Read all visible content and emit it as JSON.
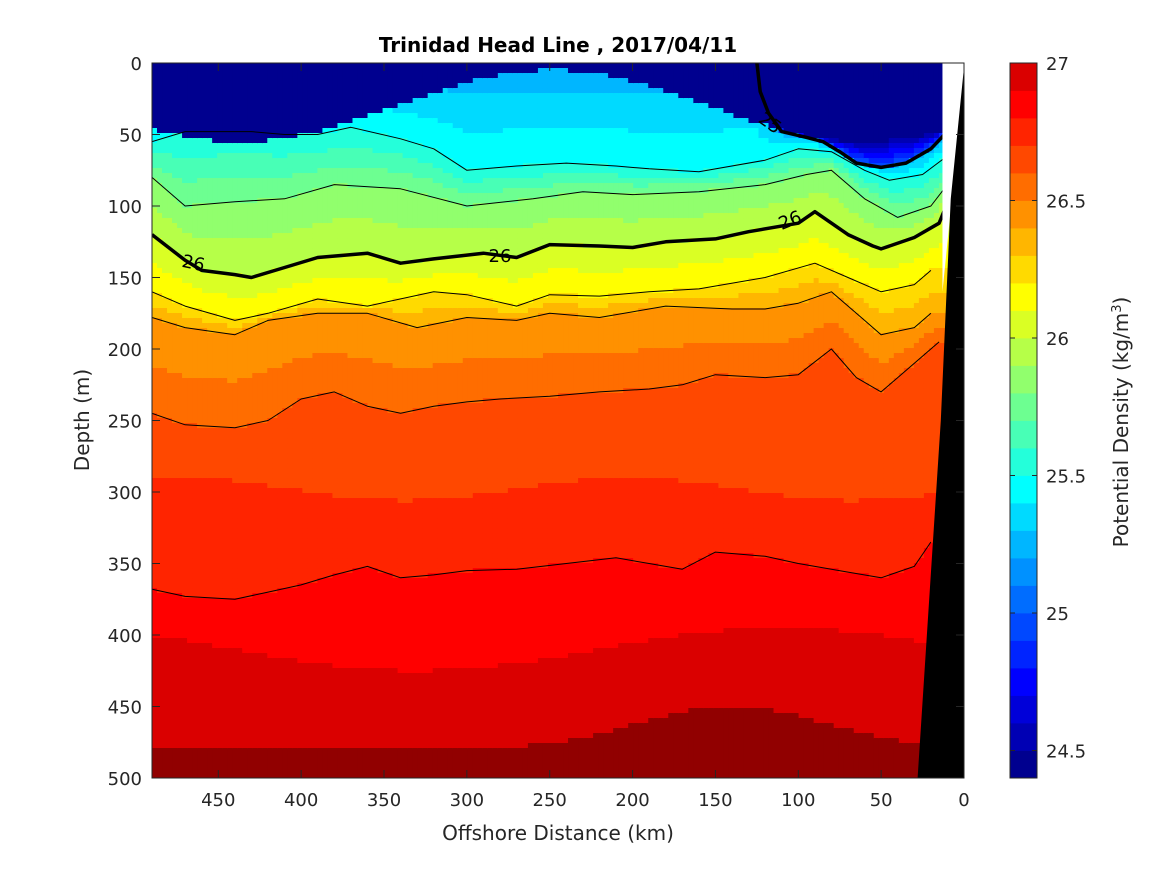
{
  "chart_data": {
    "type": "heatmap",
    "title": "Trinidad Head Line , 2017/04/11",
    "xlabel": "Offshore Distance (km)",
    "ylabel": "Depth (m)",
    "colorbar_label": "Potential Density (kg/m³)",
    "colorbar_label_parts": {
      "base": "Potential Density (kg/m",
      "sup": "3",
      "end": ")"
    },
    "xlim": [
      490,
      0
    ],
    "x_reversed": true,
    "ylim": [
      0,
      500
    ],
    "y_reversed": true,
    "x_ticks": [
      450,
      400,
      350,
      300,
      250,
      200,
      150,
      100,
      50,
      0
    ],
    "x_tick_labels": [
      "450",
      "400",
      "350",
      "300",
      "250",
      "200",
      "150",
      "100",
      "50",
      "0"
    ],
    "y_ticks": [
      0,
      50,
      100,
      150,
      200,
      250,
      300,
      350,
      400,
      450,
      500
    ],
    "y_tick_labels": [
      "0",
      "50",
      "100",
      "150",
      "200",
      "250",
      "300",
      "350",
      "400",
      "450",
      "500"
    ],
    "clim": [
      24.4,
      27
    ],
    "colorbar_ticks": [
      24.5,
      25,
      25.5,
      26,
      26.5,
      27
    ],
    "colorbar_tick_labels": [
      "24.5",
      "25",
      "25.5",
      "26",
      "26.5",
      "27"
    ],
    "colormap": "jet",
    "levels": [
      24.4,
      24.5,
      24.6,
      24.7,
      24.8,
      24.9,
      25.0,
      25.1,
      25.2,
      25.3,
      25.4,
      25.5,
      25.6,
      25.7,
      25.8,
      25.9,
      26.0,
      26.1,
      26.2,
      26.3,
      26.4,
      26.5,
      26.6,
      26.7,
      26.8,
      26.9,
      27.0
    ],
    "colors": [
      "#00008f",
      "#0000b4",
      "#0000d9",
      "#0000ff",
      "#0024ff",
      "#0048ff",
      "#006dff",
      "#0091ff",
      "#00b6ff",
      "#00daff",
      "#00ffff",
      "#24ffda",
      "#48ffb6",
      "#6dff91",
      "#91ff6d",
      "#b6ff48",
      "#daff24",
      "#ffff00",
      "#ffda00",
      "#ffb600",
      "#ff9100",
      "#ff6d00",
      "#ff4800",
      "#ff2400",
      "#ff0000",
      "#da0000",
      "#b60000",
      "#910000"
    ],
    "grid": false,
    "annotations": [
      {
        "text": "26",
        "x": 465,
        "y": 140
      },
      {
        "text": "26",
        "x": 280,
        "y": 135
      },
      {
        "text": "26",
        "x": 105,
        "y": 110
      },
      {
        "text": "25",
        "x": 117,
        "y": 42
      }
    ],
    "isopycnals": [
      {
        "level": 25.0,
        "bold": true,
        "points": [
          [
            125,
            0
          ],
          [
            123,
            20
          ],
          [
            118,
            35
          ],
          [
            110,
            48
          ],
          [
            95,
            52
          ],
          [
            85,
            55
          ],
          [
            75,
            62
          ],
          [
            65,
            70
          ],
          [
            50,
            73
          ],
          [
            35,
            70
          ],
          [
            20,
            60
          ],
          [
            10,
            48
          ]
        ]
      },
      {
        "level": 25.5,
        "bold": false,
        "points": [
          [
            490,
            55
          ],
          [
            470,
            48
          ],
          [
            430,
            48
          ],
          [
            410,
            50
          ],
          [
            390,
            50
          ],
          [
            370,
            45
          ],
          [
            340,
            53
          ],
          [
            320,
            60
          ],
          [
            300,
            75
          ],
          [
            270,
            72
          ],
          [
            240,
            70
          ],
          [
            210,
            72
          ],
          [
            190,
            74
          ],
          [
            160,
            76
          ],
          [
            120,
            68
          ],
          [
            100,
            60
          ],
          [
            80,
            62
          ],
          [
            60,
            75
          ],
          [
            45,
            82
          ],
          [
            25,
            78
          ],
          [
            10,
            65
          ]
        ]
      },
      {
        "level": 25.8,
        "bold": false,
        "points": [
          [
            490,
            80
          ],
          [
            470,
            100
          ],
          [
            440,
            97
          ],
          [
            410,
            95
          ],
          [
            380,
            85
          ],
          [
            340,
            88
          ],
          [
            300,
            100
          ],
          [
            260,
            95
          ],
          [
            230,
            90
          ],
          [
            200,
            92
          ],
          [
            160,
            90
          ],
          [
            120,
            85
          ],
          [
            95,
            78
          ],
          [
            80,
            75
          ],
          [
            60,
            95
          ],
          [
            40,
            108
          ],
          [
            20,
            100
          ],
          [
            10,
            85
          ]
        ]
      },
      {
        "level": 26.0,
        "bold": true,
        "points": [
          [
            490,
            120
          ],
          [
            470,
            138
          ],
          [
            460,
            145
          ],
          [
            440,
            148
          ],
          [
            430,
            150
          ],
          [
            410,
            143
          ],
          [
            390,
            136
          ],
          [
            360,
            133
          ],
          [
            340,
            140
          ],
          [
            320,
            137
          ],
          [
            290,
            133
          ],
          [
            270,
            136
          ],
          [
            250,
            127
          ],
          [
            220,
            128
          ],
          [
            200,
            129
          ],
          [
            180,
            125
          ],
          [
            150,
            123
          ],
          [
            130,
            118
          ],
          [
            100,
            112
          ],
          [
            90,
            104
          ],
          [
            70,
            120
          ],
          [
            55,
            128
          ],
          [
            50,
            130
          ],
          [
            30,
            122
          ],
          [
            15,
            112
          ],
          [
            10,
            98
          ]
        ]
      },
      {
        "level": 26.2,
        "bold": false,
        "points": [
          [
            490,
            160
          ],
          [
            470,
            170
          ],
          [
            440,
            180
          ],
          [
            420,
            175
          ],
          [
            390,
            165
          ],
          [
            360,
            170
          ],
          [
            320,
            160
          ],
          [
            300,
            162
          ],
          [
            270,
            170
          ],
          [
            250,
            162
          ],
          [
            220,
            163
          ],
          [
            190,
            160
          ],
          [
            160,
            158
          ],
          [
            120,
            150
          ],
          [
            90,
            140
          ],
          [
            70,
            150
          ],
          [
            50,
            160
          ],
          [
            30,
            155
          ],
          [
            20,
            145
          ]
        ]
      },
      {
        "level": 26.4,
        "bold": false,
        "points": [
          [
            490,
            178
          ],
          [
            470,
            185
          ],
          [
            440,
            190
          ],
          [
            420,
            180
          ],
          [
            390,
            175
          ],
          [
            360,
            175
          ],
          [
            330,
            185
          ],
          [
            300,
            178
          ],
          [
            270,
            180
          ],
          [
            250,
            175
          ],
          [
            220,
            178
          ],
          [
            180,
            170
          ],
          [
            140,
            172
          ],
          [
            120,
            172
          ],
          [
            100,
            168
          ],
          [
            80,
            160
          ],
          [
            60,
            180
          ],
          [
            50,
            190
          ],
          [
            30,
            185
          ],
          [
            20,
            175
          ]
        ]
      },
      {
        "level": 26.6,
        "bold": false,
        "points": [
          [
            490,
            245
          ],
          [
            470,
            253
          ],
          [
            440,
            255
          ],
          [
            420,
            250
          ],
          [
            400,
            235
          ],
          [
            380,
            230
          ],
          [
            360,
            240
          ],
          [
            340,
            245
          ],
          [
            320,
            240
          ],
          [
            300,
            237
          ],
          [
            280,
            235
          ],
          [
            250,
            233
          ],
          [
            220,
            230
          ],
          [
            190,
            228
          ],
          [
            170,
            225
          ],
          [
            150,
            218
          ],
          [
            120,
            220
          ],
          [
            100,
            218
          ],
          [
            80,
            200
          ],
          [
            65,
            220
          ],
          [
            50,
            230
          ],
          [
            40,
            220
          ],
          [
            25,
            205
          ],
          [
            15,
            195
          ]
        ]
      },
      {
        "level": 26.8,
        "bold": false,
        "points": [
          [
            490,
            368
          ],
          [
            470,
            373
          ],
          [
            440,
            375
          ],
          [
            420,
            370
          ],
          [
            400,
            365
          ],
          [
            380,
            358
          ],
          [
            360,
            352
          ],
          [
            340,
            360
          ],
          [
            320,
            358
          ],
          [
            300,
            355
          ],
          [
            270,
            354
          ],
          [
            240,
            350
          ],
          [
            210,
            346
          ],
          [
            190,
            350
          ],
          [
            170,
            354
          ],
          [
            150,
            342
          ],
          [
            120,
            345
          ],
          [
            100,
            350
          ],
          [
            70,
            356
          ],
          [
            50,
            360
          ],
          [
            30,
            352
          ],
          [
            20,
            335
          ]
        ]
      }
    ]
  },
  "colors": {
    "background": "#ffffff",
    "text": "#262626",
    "axes": "#262626",
    "bathymetry": "#000000",
    "no_data": "#ffffff"
  }
}
